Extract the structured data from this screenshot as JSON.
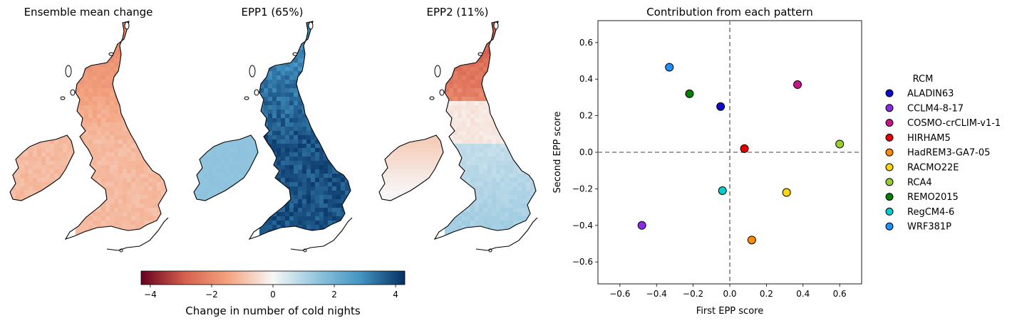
{
  "maps": [
    {
      "title": "Ensemble mean change",
      "palette": "negative"
    },
    {
      "title": "EPP1 (65%)",
      "palette": "positive"
    },
    {
      "title": "EPP2 (11%)",
      "palette": "dipole"
    }
  ],
  "colorbar": {
    "label": "Change in number of cold nights",
    "min": -4.3,
    "max": 4.3,
    "ticks": [
      -4,
      -2,
      0,
      2,
      4
    ],
    "tick_labels": [
      "−4",
      "−2",
      "0",
      "2",
      "4"
    ],
    "colormap": "RdBu",
    "stops": [
      "#67001f",
      "#d6604d",
      "#f4a582",
      "#f7f7f7",
      "#92c5de",
      "#4393c3",
      "#053061"
    ]
  },
  "chart_data": {
    "type": "scatter",
    "title": "Contribution from each pattern",
    "xlabel": "First EPP score",
    "ylabel": "Second EPP score",
    "xlim": [
      -0.72,
      0.72
    ],
    "ylim": [
      -0.72,
      0.72
    ],
    "xticks": [
      -0.6,
      -0.4,
      -0.2,
      0.0,
      0.2,
      0.4,
      0.6
    ],
    "xtick_labels": [
      "−0.6",
      "−0.4",
      "−0.2",
      "0.0",
      "0.2",
      "0.4",
      "0.6"
    ],
    "yticks": [
      -0.6,
      -0.4,
      -0.2,
      0.0,
      0.2,
      0.4,
      0.6
    ],
    "ytick_labels": [
      "−0.6",
      "−0.4",
      "−0.2",
      "0.0",
      "0.2",
      "0.4",
      "0.6"
    ],
    "grid": false,
    "reference_lines": {
      "x": 0,
      "y": 0,
      "style": "dashed",
      "color": "#808080"
    },
    "legend": {
      "title": "RCM",
      "placement": "outside-right"
    },
    "points": [
      {
        "name": "ALADIN63",
        "x": -0.05,
        "y": 0.25,
        "color": "#0a0ad2"
      },
      {
        "name": "CCLM4-8-17",
        "x": -0.48,
        "y": -0.4,
        "color": "#8a2be2"
      },
      {
        "name": "COSMO-crCLIM-v1-1",
        "x": 0.37,
        "y": 0.37,
        "color": "#c71585"
      },
      {
        "name": "HIRHAM5",
        "x": 0.08,
        "y": 0.02,
        "color": "#e60000"
      },
      {
        "name": "HadREM3-GA7-05",
        "x": 0.12,
        "y": -0.48,
        "color": "#ff8c00"
      },
      {
        "name": "RACMO22E",
        "x": 0.31,
        "y": -0.22,
        "color": "#ffd700"
      },
      {
        "name": "RCA4",
        "x": 0.6,
        "y": 0.045,
        "color": "#9acd32"
      },
      {
        "name": "REMO2015",
        "x": -0.22,
        "y": 0.32,
        "color": "#008000"
      },
      {
        "name": "RegCM4-6",
        "x": -0.04,
        "y": -0.21,
        "color": "#00ced1"
      },
      {
        "name": "WRF381P",
        "x": -0.33,
        "y": 0.465,
        "color": "#1e90ff"
      }
    ]
  }
}
